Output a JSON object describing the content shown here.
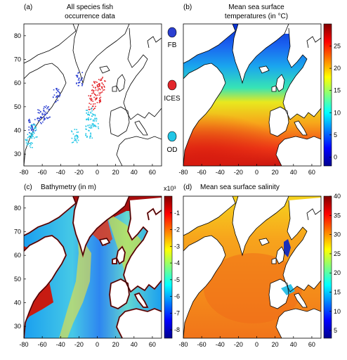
{
  "figure": {
    "legend_items": [
      {
        "label": "FB",
        "color": "#2b3fd1"
      },
      {
        "label": "ICES",
        "color": "#e3262b"
      },
      {
        "label": "OD",
        "color": "#22c6e6"
      }
    ]
  },
  "chart_data": [
    {
      "type": "map",
      "panel": "(a)",
      "title_lines": [
        "All species fish",
        "occurrence data"
      ],
      "x_ticks": [
        -80,
        -60,
        -40,
        -20,
        0,
        20,
        40,
        60
      ],
      "y_ticks": [
        30,
        40,
        50,
        60,
        70,
        80
      ],
      "xlim": [
        -80,
        70
      ],
      "ylim": [
        25,
        85
      ],
      "point_groups": [
        {
          "name": "FB",
          "color": "#2b3fd1",
          "regions": [
            [
              -72,
              42
            ],
            [
              -62,
              46
            ],
            [
              -55,
              48
            ],
            [
              -45,
              55
            ],
            [
              -20,
              62
            ]
          ]
        },
        {
          "name": "ICES",
          "color": "#e3262b",
          "regions": [
            [
              -3,
              58
            ],
            [
              2,
              55
            ],
            [
              5,
              60
            ],
            [
              -6,
              52
            ]
          ]
        },
        {
          "name": "OD",
          "color": "#22c6e6",
          "regions": [
            [
              -75,
              36
            ],
            [
              -9,
              47
            ],
            [
              -10,
              40
            ],
            [
              -70,
              40
            ],
            [
              -25,
              38
            ],
            [
              -3,
              44
            ]
          ]
        }
      ]
    },
    {
      "type": "heatmap",
      "panel": "(b)",
      "title_lines": [
        "Mean sea surface",
        "temperatures (in °C)"
      ],
      "x_ticks": [
        -80,
        -60,
        -40,
        -20,
        0,
        20,
        40,
        60
      ],
      "y_ticks": [],
      "xlim": [
        -80,
        70
      ],
      "ylim": [
        25,
        85
      ],
      "colorbar": {
        "ticks": [
          0,
          5,
          10,
          15,
          20,
          25
        ],
        "range": [
          -2,
          30
        ],
        "exponent_label": ""
      }
    },
    {
      "type": "heatmap",
      "panel": "(c)",
      "title_lines": [
        "Bathymetry (in m)"
      ],
      "x_ticks": [
        -80,
        -60,
        -40,
        -20,
        0,
        20,
        40,
        60
      ],
      "y_ticks": [
        30,
        40,
        50,
        60,
        70,
        80
      ],
      "xlim": [
        -80,
        70
      ],
      "ylim": [
        25,
        85
      ],
      "colorbar": {
        "ticks": [
          -1,
          -2,
          -3,
          -4,
          -5,
          -6,
          -7,
          -8
        ],
        "range": [
          -8.5,
          0
        ],
        "exponent_label": "x10³"
      }
    },
    {
      "type": "heatmap",
      "panel": "(d)",
      "title_lines": [
        "Mean sea surface salinity"
      ],
      "x_ticks": [
        -80,
        -60,
        -40,
        -20,
        0,
        20,
        40,
        60
      ],
      "y_ticks": [],
      "xlim": [
        -80,
        70
      ],
      "ylim": [
        25,
        85
      ],
      "colorbar": {
        "ticks": [
          5,
          10,
          15,
          20,
          25,
          30,
          35,
          40
        ],
        "range": [
          3,
          40
        ],
        "exponent_label": ""
      }
    }
  ]
}
